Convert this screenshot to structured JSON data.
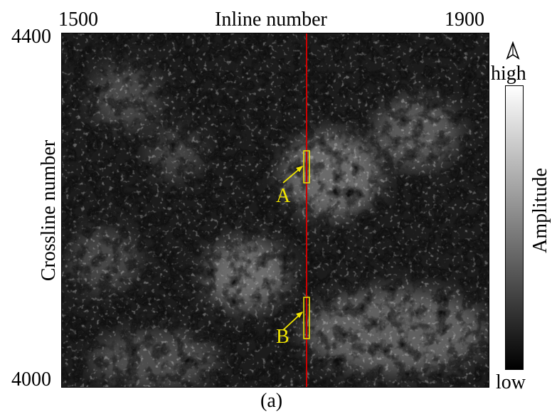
{
  "figure": {
    "x_axis": {
      "label": "Inline number",
      "tick_min": "1500",
      "tick_max": "1900"
    },
    "y_axis": {
      "label": "Crossline number",
      "tick_max": "4400",
      "tick_min": "4000"
    },
    "colorbar": {
      "label": "Amplitude",
      "high": "high",
      "low": "low"
    },
    "annotations": {
      "a": "A",
      "b": "B"
    },
    "caption": "(a)",
    "colors": {
      "line": "#d10000",
      "highlight": "#f2e600"
    },
    "north_icon": "north-arrow-icon"
  }
}
